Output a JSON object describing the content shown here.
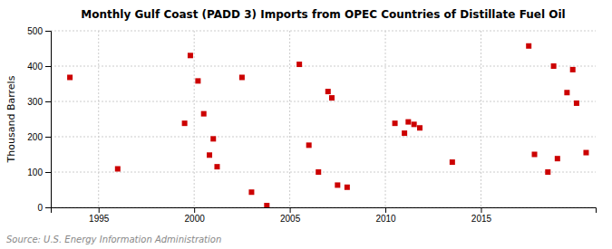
{
  "chart_data": {
    "type": "scatter",
    "title": "Monthly Gulf Coast (PADD 3) Imports from OPEC Countries of Distillate Fuel Oil",
    "ylabel": "Thousand Barrels",
    "source": "Source: U.S. Energy Information Administration",
    "color": "#cc0000",
    "marker": "square",
    "grid": true,
    "xlim": [
      1992.5,
      2021.0
    ],
    "ylim": [
      0,
      500
    ],
    "xticks": [
      1995,
      2000,
      2005,
      2010,
      2015
    ],
    "yticks": [
      0,
      100,
      200,
      300,
      400,
      500
    ],
    "x": [
      1993.5,
      1996.0,
      1999.5,
      1999.8,
      2000.2,
      2000.5,
      2000.8,
      2001.0,
      2001.2,
      2002.5,
      2003.0,
      2003.8,
      2005.5,
      2006.0,
      2006.5,
      2007.0,
      2007.2,
      2007.5,
      2008.0,
      2010.5,
      2011.0,
      2011.2,
      2011.5,
      2011.8,
      2013.5,
      2017.5,
      2017.8,
      2018.5,
      2018.8,
      2019.0,
      2019.5,
      2019.8,
      2020.0,
      2020.5
    ],
    "values": [
      368,
      109,
      238,
      430,
      358,
      265,
      148,
      194,
      115,
      368,
      43,
      5,
      405,
      176,
      100,
      328,
      310,
      63,
      57,
      238,
      210,
      242,
      235,
      225,
      128,
      457,
      150,
      100,
      400,
      138,
      325,
      390,
      295,
      155
    ]
  }
}
